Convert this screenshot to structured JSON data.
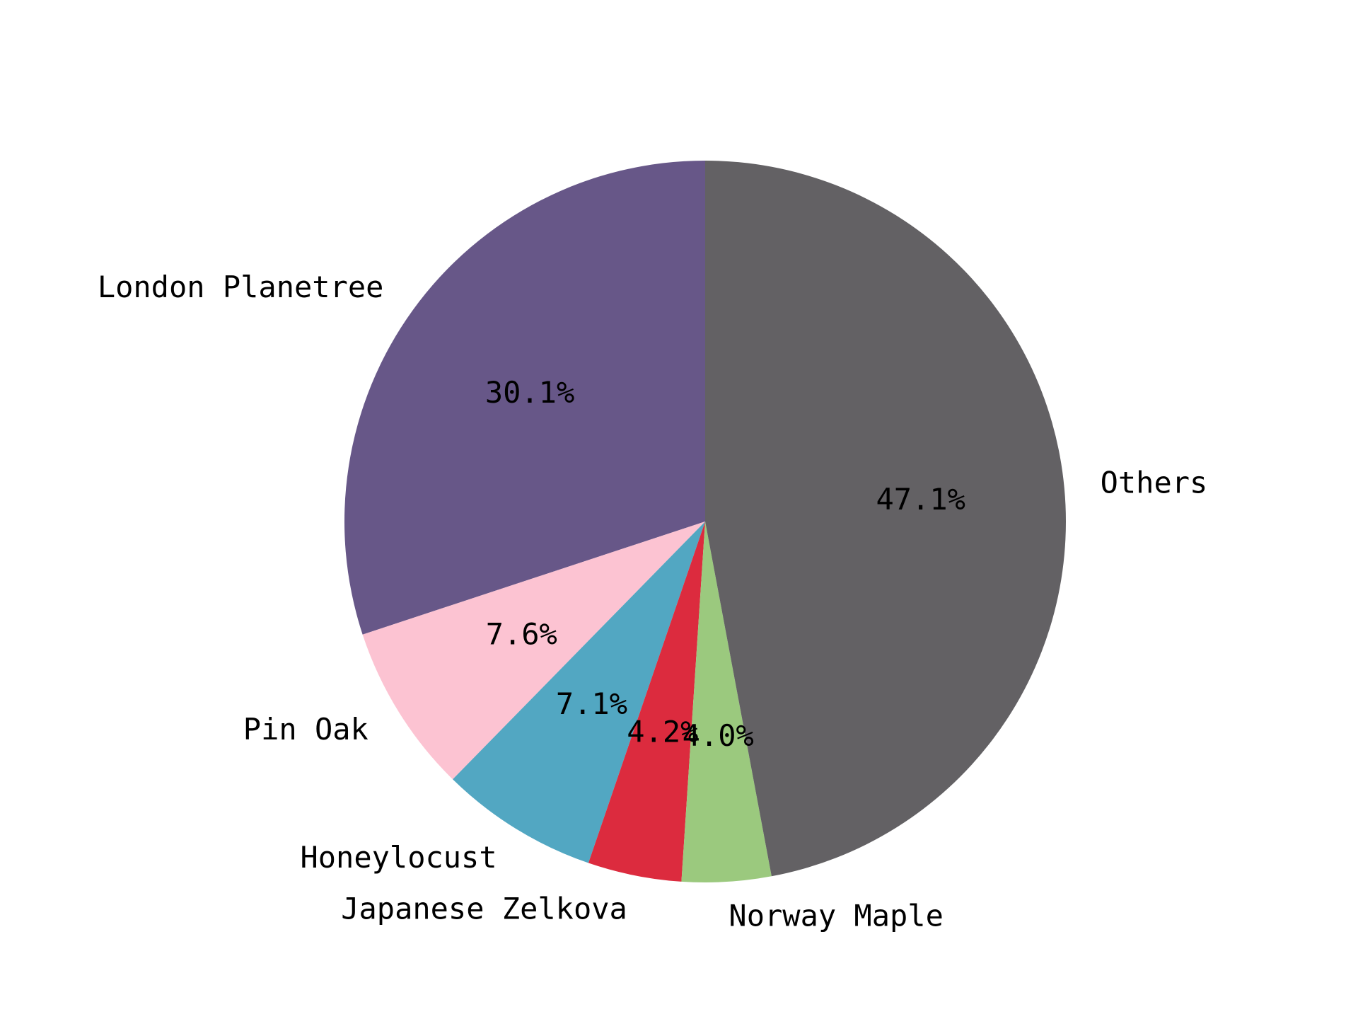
{
  "chart_data": {
    "type": "pie",
    "title": "",
    "start_angle_deg": 90,
    "direction": "counterclockwise",
    "slices": [
      {
        "label": "London Planetree",
        "value": 30.1,
        "pct_label": "30.1%",
        "color": "#675788"
      },
      {
        "label": "Pin Oak",
        "value": 7.6,
        "pct_label": "7.6%",
        "color": "#fcc3d2"
      },
      {
        "label": "Honeylocust",
        "value": 7.1,
        "pct_label": "7.1%",
        "color": "#52a7c2"
      },
      {
        "label": "Japanese Zelkova",
        "value": 4.2,
        "pct_label": "4.2%",
        "color": "#dc2b3e"
      },
      {
        "label": "Norway Maple",
        "value": 4.0,
        "pct_label": "4.0%",
        "color": "#9bc97e"
      },
      {
        "label": "Others",
        "value": 47.1,
        "pct_label": "47.1%",
        "color": "#636164"
      }
    ]
  }
}
